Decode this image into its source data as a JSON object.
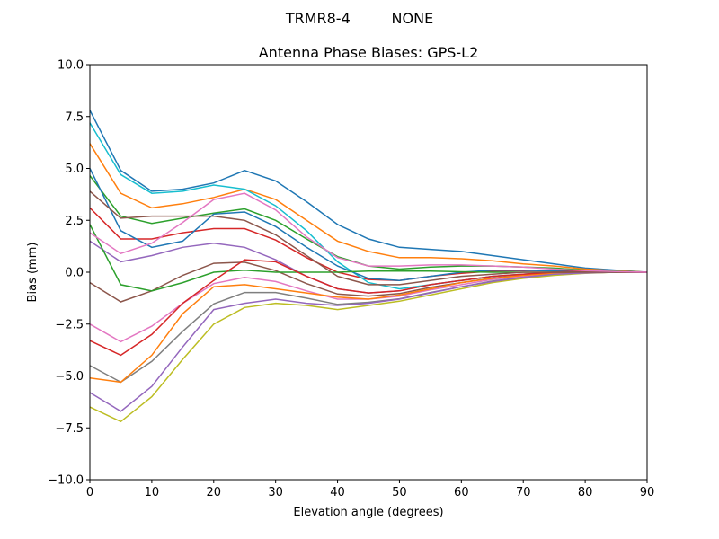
{
  "chart_data": {
    "type": "line",
    "suptitle": "TRMR8-4         NONE",
    "title": "Antenna Phase Biases: GPS-L2",
    "xlabel": "Elevation angle (degrees)",
    "ylabel": "Bias (mm)",
    "xlim": [
      0,
      90
    ],
    "ylim": [
      -10,
      10
    ],
    "xticks": [
      0,
      10,
      20,
      30,
      40,
      50,
      60,
      70,
      80,
      90
    ],
    "xtick_labels": [
      "0",
      "10",
      "20",
      "30",
      "40",
      "50",
      "60",
      "70",
      "80",
      "90"
    ],
    "yticks": [
      -10,
      -7.5,
      -5,
      -2.5,
      0,
      2.5,
      5,
      7.5,
      10
    ],
    "ytick_labels": [
      "−10.0",
      "−7.5",
      "−5.0",
      "−2.5",
      "0.0",
      "2.5",
      "5.0",
      "7.5",
      "10.0"
    ],
    "grid": false,
    "colors": [
      "#1f77b4",
      "#ff7f0e",
      "#2ca02c",
      "#d62728",
      "#9467bd",
      "#8c564b",
      "#e377c2",
      "#7f7f7f",
      "#bcbd22",
      "#17becf"
    ],
    "x": [
      0,
      5,
      10,
      15,
      20,
      25,
      30,
      35,
      40,
      45,
      50,
      55,
      60,
      65,
      70,
      75,
      80,
      85,
      90
    ],
    "series": [
      {
        "values": [
          7.8,
          4.9,
          3.9,
          4.0,
          4.3,
          4.9,
          4.4,
          3.4,
          2.3,
          1.6,
          1.2,
          1.1,
          1.0,
          0.8,
          0.6,
          0.4,
          0.2,
          0.1,
          0
        ]
      },
      {
        "values": [
          6.2,
          3.8,
          3.1,
          3.3,
          3.6,
          4.0,
          3.5,
          2.5,
          1.5,
          1.0,
          0.7,
          0.7,
          0.65,
          0.55,
          0.4,
          0.3,
          0.15,
          0.08,
          0
        ]
      },
      {
        "values": [
          4.65,
          2.7,
          2.35,
          2.6,
          2.85,
          3.05,
          2.5,
          1.6,
          0.75,
          0.3,
          0.15,
          0.25,
          0.3,
          0.3,
          0.25,
          0.2,
          0.1,
          0.05,
          0
        ]
      },
      {
        "values": [
          3.1,
          1.6,
          1.6,
          1.9,
          2.1,
          2.1,
          1.55,
          0.7,
          0,
          -0.35,
          -0.4,
          -0.2,
          -0.05,
          0.05,
          0.08,
          0.1,
          0.05,
          0.02,
          0
        ]
      },
      {
        "values": [
          1.5,
          0.5,
          0.8,
          1.2,
          1.4,
          1.2,
          0.6,
          -0.2,
          -0.8,
          -1.0,
          -0.9,
          -0.6,
          -0.4,
          -0.2,
          -0.1,
          0,
          0,
          0,
          0
        ]
      },
      {
        "values": [
          -0.5,
          -1.43,
          -0.9,
          -0.15,
          0.43,
          0.48,
          0.08,
          -0.55,
          -1.05,
          -1.15,
          -1.03,
          -0.73,
          -0.5,
          -0.28,
          -0.15,
          -0.04,
          -0.01,
          0,
          0
        ]
      },
      {
        "values": [
          -2.5,
          -3.35,
          -2.6,
          -1.5,
          -0.55,
          -0.25,
          -0.45,
          -0.9,
          -1.3,
          -1.3,
          -1.15,
          -0.85,
          -0.6,
          -0.35,
          -0.2,
          -0.08,
          -0.03,
          0,
          0
        ]
      },
      {
        "values": [
          -4.5,
          -5.3,
          -4.3,
          -2.85,
          -1.53,
          -0.98,
          -0.98,
          -1.25,
          -1.55,
          -1.45,
          -1.28,
          -0.98,
          -0.7,
          -0.43,
          -0.25,
          -0.11,
          -0.04,
          0,
          0
        ]
      },
      {
        "values": [
          -6.5,
          -7.2,
          -6.0,
          -4.2,
          -2.5,
          -1.7,
          -1.5,
          -1.6,
          -1.8,
          -1.6,
          -1.4,
          -1.1,
          -0.8,
          -0.5,
          -0.3,
          -0.15,
          -0.05,
          0,
          0
        ]
      },
      {
        "values": [
          7.2,
          4.7,
          3.8,
          3.9,
          4.2,
          4.0,
          3.2,
          2.0,
          0.5,
          -0.5,
          -0.8,
          -0.6,
          -0.4,
          -0.2,
          -0.1,
          0,
          0,
          0,
          0
        ]
      },
      {
        "values": [
          5.0,
          2.0,
          1.2,
          1.5,
          2.8,
          2.9,
          2.2,
          1.2,
          0.3,
          -0.3,
          -0.4,
          -0.2,
          0,
          0.1,
          0.1,
          0.05,
          0,
          0,
          0
        ]
      },
      {
        "values": [
          -5.1,
          -5.3,
          -4.0,
          -2.0,
          -0.7,
          -0.6,
          -0.8,
          -1.0,
          -1.2,
          -1.3,
          -1.1,
          -0.8,
          -0.5,
          -0.3,
          -0.15,
          -0.05,
          0,
          0,
          0
        ]
      },
      {
        "values": [
          2.3,
          -0.6,
          -0.9,
          -0.5,
          0.0,
          0.1,
          0.0,
          0.0,
          0.0,
          0.05,
          0.05,
          0.05,
          0.02,
          0,
          0,
          0,
          0,
          0,
          0
        ]
      },
      {
        "values": [
          -3.3,
          -4.0,
          -3.0,
          -1.5,
          -0.4,
          0.6,
          0.5,
          -0.2,
          -0.8,
          -1.0,
          -0.9,
          -0.6,
          -0.4,
          -0.2,
          -0.1,
          0,
          0,
          0,
          0
        ]
      },
      {
        "values": [
          -5.8,
          -6.7,
          -5.5,
          -3.6,
          -1.8,
          -1.5,
          -1.3,
          -1.5,
          -1.6,
          -1.5,
          -1.3,
          -1.0,
          -0.7,
          -0.45,
          -0.25,
          -0.1,
          -0.04,
          0,
          0
        ]
      },
      {
        "values": [
          3.9,
          2.6,
          2.7,
          2.7,
          2.7,
          2.5,
          1.8,
          0.8,
          -0.2,
          -0.6,
          -0.6,
          -0.4,
          -0.2,
          -0.1,
          0,
          0,
          0,
          0,
          0
        ]
      },
      {
        "values": [
          1.9,
          0.9,
          1.4,
          2.4,
          3.5,
          3.8,
          3.0,
          1.7,
          0.7,
          0.3,
          0.3,
          0.35,
          0.35,
          0.3,
          0.25,
          0.15,
          0.08,
          0.03,
          0
        ]
      }
    ]
  }
}
